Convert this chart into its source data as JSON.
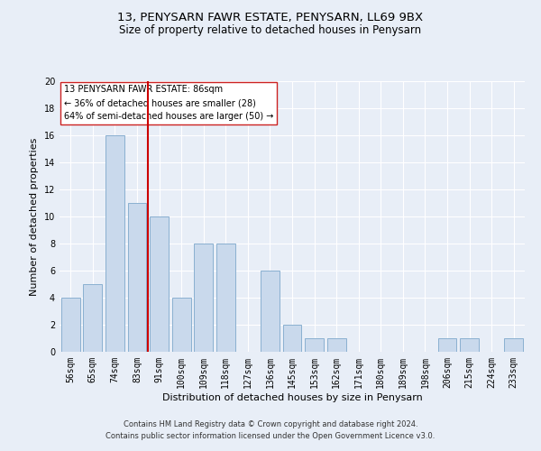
{
  "title": "13, PENYSARN FAWR ESTATE, PENYSARN, LL69 9BX",
  "subtitle": "Size of property relative to detached houses in Penysarn",
  "xlabel": "Distribution of detached houses by size in Penysarn",
  "ylabel": "Number of detached properties",
  "bar_labels": [
    "56sqm",
    "65sqm",
    "74sqm",
    "83sqm",
    "91sqm",
    "100sqm",
    "109sqm",
    "118sqm",
    "127sqm",
    "136sqm",
    "145sqm",
    "153sqm",
    "162sqm",
    "171sqm",
    "180sqm",
    "189sqm",
    "198sqm",
    "206sqm",
    "215sqm",
    "224sqm",
    "233sqm"
  ],
  "bar_values": [
    4,
    5,
    16,
    11,
    10,
    4,
    8,
    8,
    0,
    6,
    2,
    1,
    1,
    0,
    0,
    0,
    0,
    1,
    1,
    0,
    1
  ],
  "bar_color": "#c9d9ec",
  "bar_edge_color": "#8ab0d0",
  "vline_x": 3.5,
  "vline_color": "#cc0000",
  "ylim": [
    0,
    20
  ],
  "yticks": [
    0,
    2,
    4,
    6,
    8,
    10,
    12,
    14,
    16,
    18,
    20
  ],
  "annotation_line1": "13 PENYSARN FAWR ESTATE: 86sqm",
  "annotation_line2": "← 36% of detached houses are smaller (28)",
  "annotation_line3": "64% of semi-detached houses are larger (50) →",
  "footer1": "Contains HM Land Registry data © Crown copyright and database right 2024.",
  "footer2": "Contains public sector information licensed under the Open Government Licence v3.0.",
  "background_color": "#e8eef7",
  "plot_bg_color": "#e8eef7",
  "grid_color": "#ffffff",
  "title_fontsize": 9.5,
  "subtitle_fontsize": 8.5,
  "axis_label_fontsize": 8,
  "tick_fontsize": 7,
  "annotation_fontsize": 7,
  "footer_fontsize": 6
}
